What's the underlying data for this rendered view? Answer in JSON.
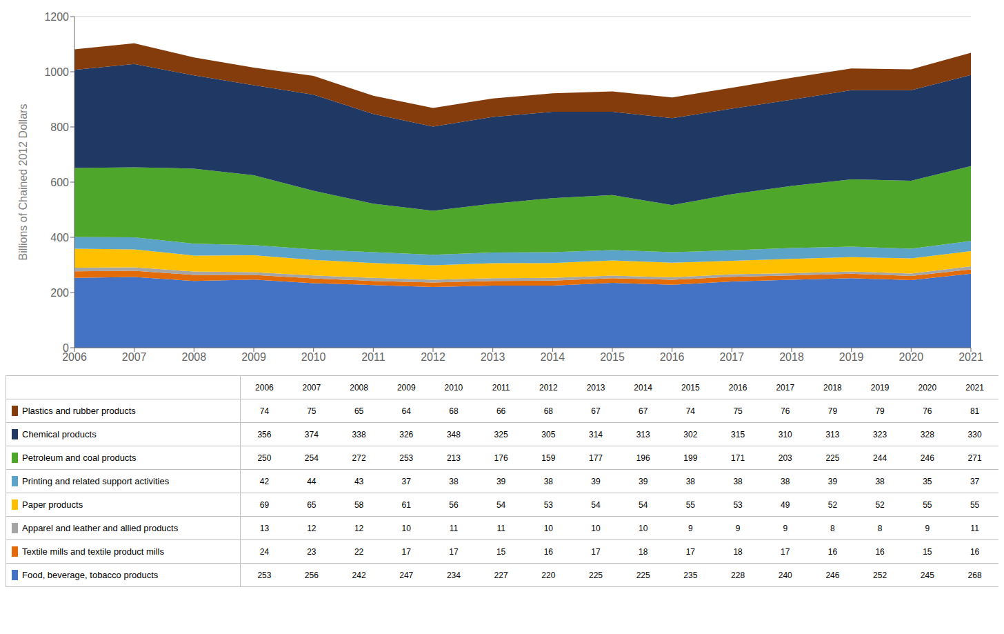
{
  "chart_data": {
    "type": "area",
    "stacked": true,
    "ylabel": "Billions of Chained 2012 Dollars",
    "x": [
      2006,
      2007,
      2008,
      2009,
      2010,
      2011,
      2012,
      2013,
      2014,
      2015,
      2016,
      2017,
      2018,
      2019,
      2020,
      2021
    ],
    "xlim": [
      2006,
      2021
    ],
    "xticks": [
      2006,
      2007,
      2008,
      2009,
      2010,
      2011,
      2012,
      2013,
      2014,
      2015,
      2016,
      2017,
      2018,
      2019,
      2020,
      2021
    ],
    "ylim": [
      0,
      1200
    ],
    "yticks": [
      0,
      200,
      400,
      600,
      800,
      1000,
      1200
    ],
    "grid": true,
    "legend": "bottom",
    "series": [
      {
        "name": "Food, beverage, tobacco products",
        "color": "#4472C4",
        "values": [
          253,
          256,
          242,
          247,
          234,
          227,
          220,
          225,
          225,
          235,
          228,
          240,
          246,
          252,
          245,
          268
        ]
      },
      {
        "name": "Textile mills and textile product mills",
        "color": "#E36C09",
        "values": [
          24,
          23,
          22,
          17,
          17,
          15,
          16,
          17,
          18,
          17,
          18,
          17,
          16,
          16,
          15,
          16
        ]
      },
      {
        "name": "Apparel and leather and allied products",
        "color": "#A5A5A5",
        "values": [
          13,
          12,
          12,
          10,
          11,
          11,
          10,
          10,
          10,
          9,
          9,
          9,
          8,
          8,
          9,
          11
        ]
      },
      {
        "name": "Paper products",
        "color": "#FFC000",
        "values": [
          69,
          65,
          58,
          61,
          56,
          54,
          53,
          54,
          54,
          55,
          53,
          49,
          52,
          52,
          55,
          55
        ]
      },
      {
        "name": "Printing and related support activities",
        "color": "#5BA3C9",
        "values": [
          42,
          44,
          43,
          37,
          38,
          39,
          38,
          39,
          39,
          38,
          38,
          38,
          39,
          38,
          35,
          37
        ]
      },
      {
        "name": "Petroleum and coal products",
        "color": "#4EA72A",
        "values": [
          250,
          254,
          272,
          253,
          213,
          176,
          159,
          177,
          196,
          199,
          171,
          203,
          225,
          244,
          246,
          271
        ]
      },
      {
        "name": "Chemical products",
        "color": "#1F3864",
        "values": [
          356,
          374,
          338,
          326,
          348,
          325,
          305,
          314,
          313,
          302,
          315,
          310,
          313,
          323,
          328,
          330
        ]
      },
      {
        "name": "Plastics and rubber products",
        "color": "#843C0C",
        "values": [
          74,
          75,
          65,
          64,
          68,
          66,
          68,
          67,
          67,
          74,
          75,
          76,
          79,
          79,
          76,
          81
        ]
      }
    ]
  }
}
